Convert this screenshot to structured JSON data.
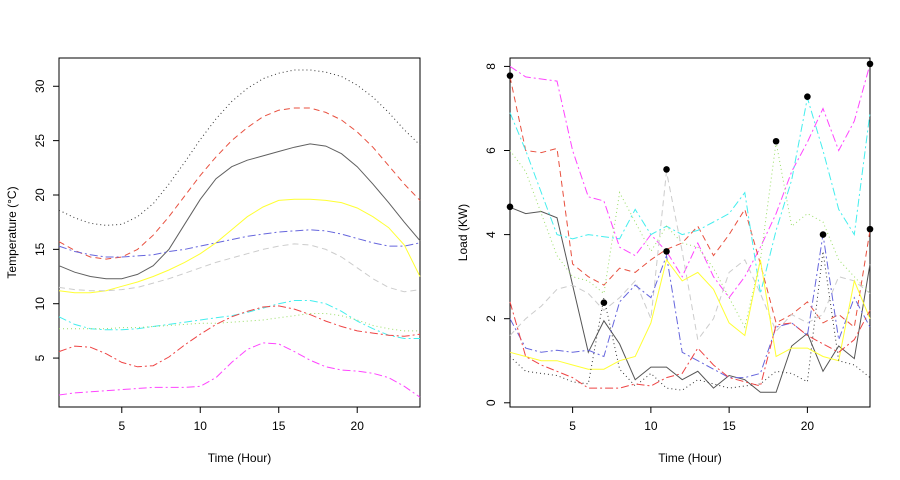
{
  "chart_data": [
    {
      "type": "line",
      "title": "",
      "xlabel": "Time (Hour)",
      "ylabel": "Temperature (°C)",
      "xlim": [
        1,
        24
      ],
      "ylim": [
        0.5,
        32.6
      ],
      "xticks": [
        5,
        10,
        15,
        20
      ],
      "yticks": [
        5,
        10,
        15,
        20,
        25,
        30
      ],
      "x": [
        1,
        2,
        3,
        4,
        5,
        6,
        7,
        8,
        9,
        10,
        11,
        12,
        13,
        14,
        15,
        16,
        17,
        18,
        19,
        20,
        21,
        22,
        23,
        24
      ],
      "series": [
        {
          "name": "s1",
          "color": "#333333",
          "dash": "1 3",
          "values": [
            18.6,
            17.9,
            17.4,
            17.2,
            17.3,
            18.0,
            19.2,
            21.0,
            23.0,
            25.1,
            27.0,
            28.6,
            29.8,
            30.7,
            31.2,
            31.5,
            31.5,
            31.3,
            30.9,
            30.1,
            29.0,
            27.6,
            26.0,
            24.6
          ]
        },
        {
          "name": "s2",
          "color": "#e8503f",
          "dash": "6 4",
          "values": [
            15.7,
            14.9,
            14.3,
            14.1,
            14.3,
            15.0,
            16.3,
            18.0,
            19.9,
            21.8,
            23.5,
            25.0,
            26.2,
            27.2,
            27.8,
            28.0,
            28.0,
            27.6,
            26.9,
            25.8,
            24.4,
            22.7,
            21.0,
            19.5
          ]
        },
        {
          "name": "s3",
          "color": "#606060",
          "dash": "",
          "values": [
            13.5,
            12.9,
            12.5,
            12.3,
            12.3,
            12.7,
            13.5,
            15.0,
            17.3,
            19.6,
            21.5,
            22.6,
            23.2,
            23.6,
            24.0,
            24.4,
            24.7,
            24.5,
            23.8,
            22.6,
            21.0,
            19.3,
            17.5,
            15.8
          ]
        },
        {
          "name": "s4",
          "color": "#ffff33",
          "dash": "",
          "values": [
            11.2,
            11.0,
            11.0,
            11.2,
            11.6,
            12.0,
            12.5,
            13.1,
            13.8,
            14.6,
            15.6,
            16.8,
            18.0,
            18.9,
            19.5,
            19.6,
            19.6,
            19.5,
            19.3,
            18.8,
            18.0,
            17.0,
            15.4,
            12.5
          ]
        },
        {
          "name": "s5",
          "color": "#6666dd",
          "dash": "8 3 2 3",
          "values": [
            15.3,
            14.8,
            14.5,
            14.3,
            14.3,
            14.4,
            14.5,
            14.8,
            15.0,
            15.3,
            15.6,
            15.9,
            16.2,
            16.4,
            16.6,
            16.7,
            16.8,
            16.7,
            16.4,
            16.0,
            15.6,
            15.3,
            15.3,
            15.6
          ]
        },
        {
          "name": "s6",
          "color": "#cccccc",
          "dash": "6 4",
          "values": [
            11.5,
            11.3,
            11.2,
            11.2,
            11.3,
            11.5,
            11.9,
            12.3,
            12.8,
            13.3,
            13.8,
            14.2,
            14.6,
            15.0,
            15.3,
            15.5,
            15.4,
            15.0,
            14.3,
            13.3,
            12.3,
            11.5,
            11.1,
            11.3
          ]
        },
        {
          "name": "s7",
          "color": "#44eeee",
          "dash": "8 3 2 3",
          "values": [
            8.8,
            8.1,
            7.7,
            7.6,
            7.6,
            7.7,
            7.9,
            8.1,
            8.3,
            8.5,
            8.7,
            8.9,
            9.2,
            9.6,
            10.0,
            10.3,
            10.3,
            10.0,
            9.3,
            8.4,
            7.7,
            7.1,
            6.8,
            6.8
          ]
        },
        {
          "name": "s8",
          "color": "#99dd66",
          "dash": "1 3",
          "values": [
            7.7,
            7.7,
            7.7,
            7.7,
            7.8,
            7.8,
            7.9,
            8.0,
            8.1,
            8.2,
            8.2,
            8.3,
            8.4,
            8.5,
            8.7,
            8.9,
            9.1,
            9.1,
            8.9,
            8.5,
            8.0,
            7.7,
            7.5,
            7.5
          ]
        },
        {
          "name": "s9",
          "color": "#ee4444",
          "dash": "8 3 2 3",
          "values": [
            5.6,
            6.1,
            6.0,
            5.4,
            4.6,
            4.2,
            4.3,
            5.1,
            6.2,
            7.2,
            8.1,
            8.8,
            9.3,
            9.7,
            9.8,
            9.5,
            9.0,
            8.4,
            7.9,
            7.5,
            7.3,
            7.1,
            7.0,
            7.2
          ]
        },
        {
          "name": "s10",
          "color": "#ff44ff",
          "dash": "8 3 2 3",
          "values": [
            1.6,
            1.8,
            1.9,
            2.0,
            2.1,
            2.2,
            2.3,
            2.3,
            2.3,
            2.4,
            3.2,
            4.6,
            5.8,
            6.4,
            6.3,
            5.6,
            4.8,
            4.2,
            3.9,
            3.8,
            3.6,
            3.2,
            2.4,
            1.4
          ]
        }
      ],
      "points": []
    },
    {
      "type": "line",
      "title": "",
      "xlabel": "Time (Hour)",
      "ylabel": "Load (KW)",
      "xlim": [
        1,
        24
      ],
      "ylim": [
        -0.1,
        8.2
      ],
      "xticks": [
        5,
        10,
        15,
        20
      ],
      "yticks": [
        0,
        2,
        4,
        6,
        8
      ],
      "x": [
        1,
        2,
        3,
        4,
        5,
        6,
        7,
        8,
        9,
        10,
        11,
        12,
        13,
        14,
        15,
        16,
        17,
        18,
        19,
        20,
        21,
        22,
        23,
        24
      ],
      "series": [
        {
          "name": "s1",
          "color": "#555555",
          "dash": "",
          "values": [
            4.65,
            4.5,
            4.55,
            4.4,
            2.8,
            1.2,
            1.95,
            1.4,
            0.55,
            0.85,
            0.85,
            0.55,
            0.75,
            0.35,
            0.65,
            0.55,
            0.25,
            0.25,
            1.35,
            1.65,
            0.75,
            1.35,
            1.05,
            3.3
          ]
        },
        {
          "name": "s2",
          "color": "#ff44ff",
          "dash": "8 3 2 3",
          "values": [
            8.0,
            7.75,
            7.7,
            7.65,
            6.0,
            4.9,
            4.8,
            3.7,
            3.5,
            4.0,
            3.6,
            3.0,
            3.8,
            3.0,
            2.5,
            3.0,
            3.7,
            4.5,
            5.5,
            6.2,
            7.0,
            6.0,
            6.7,
            8.05
          ]
        },
        {
          "name": "s3",
          "color": "#e8503f",
          "dash": "6 4",
          "values": [
            7.75,
            6.0,
            5.95,
            6.05,
            3.3,
            3.0,
            2.8,
            3.2,
            3.1,
            3.4,
            3.65,
            3.8,
            4.2,
            3.5,
            4.0,
            4.6,
            3.3,
            1.9,
            2.1,
            2.4,
            1.9,
            2.1,
            1.8,
            4.1
          ]
        },
        {
          "name": "s4",
          "color": "#44eeee",
          "dash": "8 3 2 3",
          "values": [
            6.9,
            6.0,
            5.0,
            4.0,
            3.9,
            4.0,
            3.95,
            3.9,
            4.6,
            4.0,
            4.2,
            4.0,
            4.1,
            4.3,
            4.5,
            5.0,
            2.6,
            4.1,
            5.3,
            7.25,
            6.0,
            4.6,
            4.0,
            6.9
          ]
        },
        {
          "name": "s5",
          "color": "#99dd66",
          "dash": "1 3",
          "values": [
            6.0,
            5.5,
            4.5,
            3.5,
            3.0,
            2.9,
            2.6,
            5.0,
            4.3,
            3.6,
            4.2,
            3.8,
            3.7,
            3.2,
            2.5,
            1.8,
            3.4,
            6.2,
            4.2,
            4.5,
            4.3,
            3.4,
            3.0,
            2.6
          ]
        },
        {
          "name": "s6",
          "color": "#cccccc",
          "dash": "6 4",
          "values": [
            1.6,
            2.0,
            2.3,
            2.7,
            2.8,
            2.6,
            2.2,
            2.5,
            2.9,
            2.0,
            5.5,
            3.6,
            1.5,
            2.0,
            3.1,
            3.4,
            2.6,
            1.7,
            2.1,
            1.9,
            2.1,
            3.0,
            2.9,
            2.6
          ]
        },
        {
          "name": "s7",
          "color": "#6666dd",
          "dash": "8 3 2 3",
          "values": [
            2.0,
            1.3,
            1.2,
            1.25,
            1.2,
            1.25,
            1.1,
            2.4,
            2.8,
            2.5,
            3.5,
            1.2,
            1.0,
            0.8,
            0.6,
            0.6,
            0.7,
            1.8,
            1.9,
            1.6,
            4.0,
            1.5,
            2.5,
            1.8
          ]
        },
        {
          "name": "s8",
          "color": "#ffff33",
          "dash": "",
          "values": [
            1.2,
            1.1,
            1.0,
            1.0,
            0.9,
            0.8,
            0.8,
            1.0,
            1.1,
            1.9,
            3.4,
            2.9,
            3.1,
            2.7,
            1.9,
            1.6,
            3.4,
            1.1,
            1.3,
            1.3,
            1.1,
            1.0,
            2.9,
            2.0
          ]
        },
        {
          "name": "s9",
          "color": "#333333",
          "dash": "1 3",
          "values": [
            1.1,
            0.75,
            0.7,
            0.65,
            0.5,
            0.45,
            2.5,
            0.8,
            0.4,
            0.7,
            0.35,
            0.3,
            0.55,
            0.45,
            0.35,
            0.4,
            0.45,
            0.75,
            0.7,
            0.5,
            3.6,
            1.0,
            0.9,
            0.6
          ]
        },
        {
          "name": "s10",
          "color": "#ee4444",
          "dash": "8 3 2 3",
          "values": [
            2.4,
            1.1,
            0.9,
            0.75,
            0.6,
            0.35,
            0.35,
            0.35,
            0.45,
            0.4,
            0.6,
            0.7,
            1.3,
            0.9,
            0.6,
            0.5,
            0.4,
            1.85,
            1.9,
            1.6,
            1.4,
            1.2,
            1.5,
            2.2
          ]
        }
      ],
      "points": [
        {
          "x": 1,
          "y": 7.78
        },
        {
          "x": 1,
          "y": 4.66
        },
        {
          "x": 7,
          "y": 2.38
        },
        {
          "x": 11,
          "y": 5.55
        },
        {
          "x": 11,
          "y": 3.6
        },
        {
          "x": 18,
          "y": 6.22
        },
        {
          "x": 20,
          "y": 7.28
        },
        {
          "x": 21,
          "y": 4.0
        },
        {
          "x": 24,
          "y": 8.06
        },
        {
          "x": 24,
          "y": 4.13
        }
      ]
    }
  ]
}
